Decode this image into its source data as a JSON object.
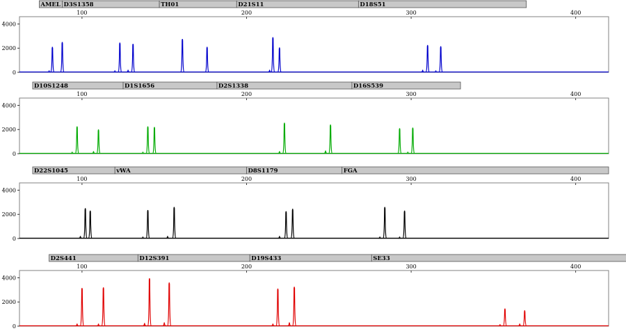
{
  "chart_data": [
    {
      "type": "line",
      "panel": "blue",
      "color": "#0000cc",
      "x_axis": {
        "range": [
          62,
          420
        ],
        "ticks": [
          100,
          200,
          300,
          400
        ]
      },
      "y_axis": {
        "range": [
          0,
          4600
        ],
        "ticks": [
          0,
          2000,
          4000
        ]
      },
      "markers": [
        {
          "label": "AMEL",
          "start": 74,
          "end": 88
        },
        {
          "label": "D3S1358",
          "start": 88,
          "end": 147
        },
        {
          "label": "TH01",
          "start": 147,
          "end": 194
        },
        {
          "label": "D21S11",
          "start": 194,
          "end": 268
        },
        {
          "label": "D18S51",
          "start": 268,
          "end": 370
        }
      ],
      "peaks": [
        {
          "x": 82,
          "y": 2100
        },
        {
          "x": 88,
          "y": 2500
        },
        {
          "x": 123,
          "y": 2450
        },
        {
          "x": 131,
          "y": 2350
        },
        {
          "x": 161,
          "y": 2750
        },
        {
          "x": 176,
          "y": 2100
        },
        {
          "x": 216,
          "y": 2900
        },
        {
          "x": 220,
          "y": 2050
        },
        {
          "x": 310,
          "y": 2250
        },
        {
          "x": 318,
          "y": 2150
        },
        {
          "x": 80,
          "y": 150
        },
        {
          "x": 120,
          "y": 150
        },
        {
          "x": 128,
          "y": 200
        },
        {
          "x": 214,
          "y": 200
        },
        {
          "x": 307,
          "y": 200
        },
        {
          "x": 315,
          "y": 150
        }
      ]
    },
    {
      "type": "line",
      "panel": "green",
      "color": "#00aa00",
      "x_axis": {
        "range": [
          62,
          420
        ],
        "ticks": [
          100,
          200,
          300,
          400
        ]
      },
      "y_axis": {
        "range": [
          0,
          4600
        ],
        "ticks": [
          0,
          2000,
          4000
        ]
      },
      "markers": [
        {
          "label": "D10S1248",
          "start": 70,
          "end": 125
        },
        {
          "label": "D1S1656",
          "start": 125,
          "end": 182
        },
        {
          "label": "D2S1338",
          "start": 182,
          "end": 264
        },
        {
          "label": "D16S539",
          "start": 264,
          "end": 330
        }
      ],
      "peaks": [
        {
          "x": 97,
          "y": 2250
        },
        {
          "x": 110,
          "y": 2000
        },
        {
          "x": 140,
          "y": 2250
        },
        {
          "x": 144,
          "y": 2200
        },
        {
          "x": 223,
          "y": 2550
        },
        {
          "x": 251,
          "y": 2400
        },
        {
          "x": 293,
          "y": 2100
        },
        {
          "x": 301,
          "y": 2150
        },
        {
          "x": 94,
          "y": 150
        },
        {
          "x": 107,
          "y": 200
        },
        {
          "x": 137,
          "y": 150
        },
        {
          "x": 220,
          "y": 200
        },
        {
          "x": 248,
          "y": 250
        },
        {
          "x": 298,
          "y": 150
        }
      ]
    },
    {
      "type": "line",
      "panel": "black",
      "color": "#000000",
      "x_axis": {
        "range": [
          62,
          420
        ],
        "ticks": [
          100,
          200,
          300,
          400
        ]
      },
      "y_axis": {
        "range": [
          0,
          4600
        ],
        "ticks": [
          0,
          2000,
          4000
        ]
      },
      "markers": [
        {
          "label": "D22S1045",
          "start": 70,
          "end": 120
        },
        {
          "label": "vWA",
          "start": 120,
          "end": 200
        },
        {
          "label": "D8S1179",
          "start": 200,
          "end": 258
        },
        {
          "label": "FGA",
          "start": 258,
          "end": 420
        }
      ],
      "peaks": [
        {
          "x": 102,
          "y": 2500
        },
        {
          "x": 105,
          "y": 2300
        },
        {
          "x": 140,
          "y": 2350
        },
        {
          "x": 156,
          "y": 2600
        },
        {
          "x": 224,
          "y": 2250
        },
        {
          "x": 228,
          "y": 2450
        },
        {
          "x": 284,
          "y": 2600
        },
        {
          "x": 296,
          "y": 2300
        },
        {
          "x": 99,
          "y": 200
        },
        {
          "x": 137,
          "y": 150
        },
        {
          "x": 152,
          "y": 200
        },
        {
          "x": 220,
          "y": 200
        },
        {
          "x": 281,
          "y": 150
        },
        {
          "x": 293,
          "y": 150
        }
      ]
    },
    {
      "type": "line",
      "panel": "red",
      "color": "#e00000",
      "x_axis": {
        "range": [
          62,
          420
        ],
        "ticks": [
          100,
          200,
          300,
          400
        ]
      },
      "y_axis": {
        "range": [
          0,
          4600
        ],
        "ticks": [
          0,
          2000,
          4000
        ]
      },
      "markers": [
        {
          "label": "D2S441",
          "start": 80,
          "end": 134
        },
        {
          "label": "D12S391",
          "start": 134,
          "end": 202
        },
        {
          "label": "D19S433",
          "start": 202,
          "end": 276
        },
        {
          "label": "SE33",
          "start": 276,
          "end": 432
        }
      ],
      "peaks": [
        {
          "x": 100,
          "y": 3150
        },
        {
          "x": 113,
          "y": 3200
        },
        {
          "x": 141,
          "y": 3950
        },
        {
          "x": 153,
          "y": 3600
        },
        {
          "x": 219,
          "y": 3100
        },
        {
          "x": 229,
          "y": 3250
        },
        {
          "x": 357,
          "y": 1450
        },
        {
          "x": 369,
          "y": 1300
        },
        {
          "x": 97,
          "y": 200
        },
        {
          "x": 110,
          "y": 200
        },
        {
          "x": 138,
          "y": 250
        },
        {
          "x": 150,
          "y": 300
        },
        {
          "x": 216,
          "y": 200
        },
        {
          "x": 226,
          "y": 300
        },
        {
          "x": 354,
          "y": 150
        },
        {
          "x": 366,
          "y": 200
        }
      ]
    }
  ]
}
